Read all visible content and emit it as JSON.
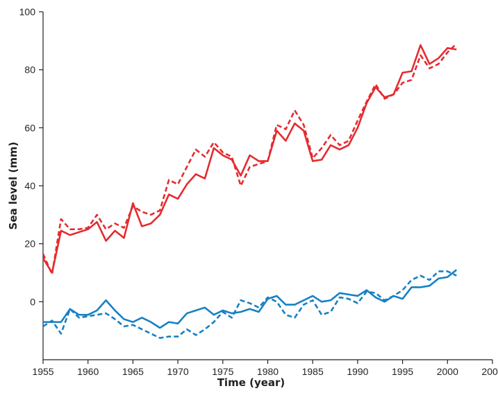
{
  "chart_data": {
    "type": "line",
    "title": "",
    "xlabel": "Time (year)",
    "ylabel": "Sea level (mm)",
    "xlim": [
      1955,
      2005
    ],
    "ylim": [
      -20,
      100
    ],
    "xticks": [
      1955,
      1960,
      1965,
      1970,
      1975,
      1980,
      1985,
      1990,
      1995,
      2000,
      2005
    ],
    "yticks": [
      0,
      20,
      40,
      60,
      80,
      100
    ],
    "grid": false,
    "legend": "none",
    "x": [
      1955,
      1956,
      1957,
      1958,
      1959,
      1960,
      1961,
      1962,
      1963,
      1964,
      1965,
      1966,
      1967,
      1968,
      1969,
      1970,
      1971,
      1972,
      1973,
      1974,
      1975,
      1976,
      1977,
      1978,
      1979,
      1980,
      1981,
      1982,
      1983,
      1984,
      1985,
      1986,
      1987,
      1988,
      1989,
      1990,
      1991,
      1992,
      1993,
      1994,
      1995,
      1996,
      1997,
      1998,
      1999,
      2000,
      2001
    ],
    "series": [
      {
        "color": "#e52a2f",
        "style": "solid",
        "values": [
          15,
          10,
          24.5,
          23,
          24,
          25,
          27.5,
          21,
          24.5,
          22,
          34,
          26,
          27,
          30,
          37,
          35.5,
          40.5,
          44,
          42.5,
          53,
          50.5,
          49,
          43.5,
          50.5,
          48.5,
          48.5,
          59,
          55.5,
          61.5,
          59,
          48.5,
          49,
          54,
          52.5,
          54,
          60,
          68.5,
          74,
          70.5,
          71.5,
          79,
          79.5,
          88.5,
          82,
          84,
          87.5,
          87
        ]
      },
      {
        "color": "#e52a2f",
        "style": "dashed",
        "values": [
          16.5,
          9.5,
          28.5,
          25,
          25,
          25.5,
          30,
          25,
          27,
          25.5,
          33,
          31,
          30,
          31.5,
          42,
          40.5,
          46.5,
          52.5,
          50,
          55,
          51.5,
          50,
          40,
          46.5,
          47.5,
          48.5,
          61,
          59.5,
          66,
          61,
          49.5,
          53,
          57.5,
          54,
          55.5,
          62.5,
          69,
          75,
          70,
          71.5,
          75.5,
          76.5,
          85,
          80.5,
          82,
          86,
          89
        ]
      },
      {
        "color": "#1680c3",
        "style": "solid",
        "values": [
          -7,
          -7,
          -7,
          -2.5,
          -4.5,
          -4.5,
          -3,
          0.5,
          -3,
          -6,
          -7,
          -5.5,
          -7,
          -9,
          -7,
          -7.5,
          -4,
          -3,
          -2,
          -4.5,
          -3,
          -4,
          -3.5,
          -2.5,
          -3.5,
          1,
          2,
          -1,
          -1,
          0.5,
          2,
          0,
          0.5,
          3,
          2.5,
          2,
          4,
          1.5,
          0,
          2,
          1,
          5,
          5,
          5.5,
          8,
          8.5,
          11
        ]
      },
      {
        "color": "#1680c3",
        "style": "dashed",
        "values": [
          -8.5,
          -6.5,
          -11,
          -2.5,
          -5.5,
          -5,
          -4.5,
          -4,
          -6,
          -8.5,
          -8,
          -9.5,
          -11,
          -12.5,
          -12,
          -12,
          -9.5,
          -11.5,
          -9.5,
          -7,
          -3.5,
          -5.5,
          0.5,
          -0.5,
          -2,
          1.5,
          0,
          -4.5,
          -5.5,
          -1,
          0.5,
          -4.5,
          -3.5,
          1.5,
          1,
          -0.5,
          3.5,
          3,
          0.5,
          2,
          4,
          7.5,
          9,
          7.5,
          10.5,
          10.5,
          9
        ]
      }
    ]
  }
}
